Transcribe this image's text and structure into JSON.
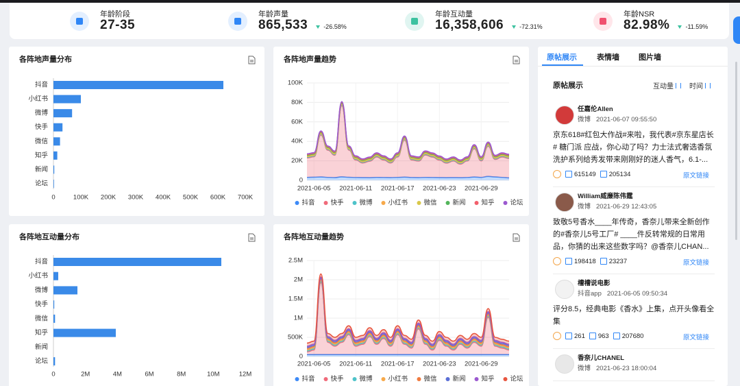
{
  "kpis": [
    {
      "label": "年龄阶段",
      "value": "27-35"
    },
    {
      "label": "年龄声量",
      "value": "865,533",
      "change": "-26.58%"
    },
    {
      "label": "年龄互动量",
      "value": "16,358,606",
      "change": "-72.31%"
    },
    {
      "label": "年龄NSR",
      "value": "82.98%",
      "change": "-11.59%"
    }
  ],
  "chart_data": [
    {
      "type": "bar",
      "orientation": "horizontal",
      "title": "各阵地声量分布",
      "color": "#3a8ae8",
      "categories": [
        "抖音",
        "小红书",
        "微博",
        "快手",
        "微信",
        "知乎",
        "新闻",
        "论坛"
      ],
      "values": [
        620000,
        100000,
        68000,
        33000,
        24000,
        14000,
        3000,
        2000
      ],
      "xlim": [
        0,
        700000
      ],
      "xticks": [
        0,
        {
          "value": 100000,
          "label": "100K"
        },
        {
          "value": 200000,
          "label": "200K"
        },
        {
          "value": 300000,
          "label": "300K"
        },
        {
          "value": 400000,
          "label": "400K"
        },
        {
          "value": 500000,
          "label": "500K"
        },
        {
          "value": 600000,
          "label": "600K"
        },
        {
          "value": 700000,
          "label": "700K"
        }
      ]
    },
    {
      "type": "area",
      "stacked": true,
      "grid": true,
      "title": "各阵地声量趋势",
      "categories": [
        null,
        "2021-06-05",
        null,
        null,
        null,
        null,
        null,
        "2021-06-11",
        null,
        null,
        null,
        null,
        null,
        "2021-06-17",
        null,
        null,
        null,
        null,
        null,
        "2021-06-23",
        null,
        null,
        null,
        null,
        null,
        "2021-06-29",
        null,
        null,
        null,
        null
      ],
      "ylim": [
        0,
        100000
      ],
      "yticks": [
        0,
        {
          "value": 20000,
          "label": "20K"
        },
        {
          "value": 40000,
          "label": "40K"
        },
        {
          "value": 60000,
          "label": "60K"
        },
        {
          "value": 80000,
          "label": "80K"
        },
        {
          "value": 100000,
          "label": "100K"
        }
      ],
      "series": [
        {
          "name": "抖音",
          "color": "#3d8af7",
          "values": [
            3000,
            3200,
            3500,
            3000,
            2800,
            3600,
            3100,
            2900,
            2800,
            2700,
            3000,
            2900,
            2800,
            3000,
            3300,
            2900,
            2800,
            3000,
            2900,
            2800,
            2700,
            2800,
            2700,
            2900,
            3400,
            3000,
            4000,
            3500,
            3000,
            2500
          ]
        },
        {
          "name": "快手",
          "color": "#f06a7a",
          "values": [
            20000,
            21000,
            43000,
            28000,
            23000,
            73000,
            28000,
            18000,
            15000,
            17000,
            21000,
            18000,
            15000,
            21000,
            38000,
            18000,
            17000,
            23000,
            21000,
            18000,
            15000,
            17000,
            14000,
            17000,
            29000,
            17000,
            31000,
            18000,
            21000,
            20000
          ]
        },
        {
          "name": "微博",
          "color": "#4ec3c9",
          "values": [
            700,
            700,
            700,
            700,
            700,
            700,
            700,
            700,
            700,
            700,
            700,
            700,
            700,
            700,
            700,
            700,
            700,
            700,
            700,
            700,
            700,
            700,
            700,
            700,
            700,
            700,
            700,
            700,
            700,
            700
          ]
        },
        {
          "name": "小红书",
          "color": "#f7a94a",
          "values": [
            700,
            700,
            700,
            700,
            700,
            700,
            700,
            700,
            700,
            700,
            700,
            700,
            700,
            700,
            700,
            700,
            700,
            700,
            700,
            700,
            700,
            700,
            700,
            700,
            700,
            700,
            700,
            700,
            700,
            700
          ]
        },
        {
          "name": "微信",
          "color": "#d9c84a",
          "values": [
            700,
            700,
            700,
            700,
            700,
            700,
            700,
            700,
            700,
            700,
            700,
            700,
            700,
            700,
            700,
            700,
            700,
            700,
            700,
            700,
            700,
            700,
            700,
            700,
            700,
            700,
            700,
            700,
            700,
            700
          ]
        },
        {
          "name": "新闻",
          "color": "#52b55a",
          "values": [
            700,
            700,
            700,
            700,
            700,
            700,
            700,
            700,
            700,
            700,
            700,
            700,
            700,
            700,
            700,
            700,
            700,
            700,
            700,
            700,
            700,
            700,
            700,
            700,
            700,
            700,
            700,
            700,
            700,
            700
          ]
        },
        {
          "name": "知乎",
          "color": "#f25f6b",
          "values": [
            700,
            700,
            700,
            700,
            700,
            700,
            700,
            700,
            700,
            700,
            700,
            700,
            700,
            700,
            700,
            700,
            700,
            700,
            700,
            700,
            700,
            700,
            700,
            700,
            700,
            700,
            700,
            700,
            700,
            700
          ]
        },
        {
          "name": "论坛",
          "color": "#9b59d0",
          "values": [
            700,
            700,
            700,
            700,
            700,
            700,
            700,
            700,
            700,
            700,
            700,
            700,
            700,
            700,
            700,
            700,
            700,
            700,
            700,
            700,
            700,
            700,
            700,
            700,
            700,
            700,
            700,
            700,
            700,
            700
          ]
        }
      ]
    },
    {
      "type": "bar",
      "orientation": "horizontal",
      "title": "各阵地互动量分布",
      "color": "#3a8ae8",
      "categories": [
        "抖音",
        "小红书",
        "微博",
        "快手",
        "微信",
        "知乎",
        "新闻",
        "论坛"
      ],
      "values": [
        10500000,
        300000,
        1500000,
        50000,
        100000,
        3900000,
        0,
        100000
      ],
      "xlim": [
        0,
        12000000
      ],
      "xticks": [
        0,
        {
          "value": 2000000,
          "label": "2M"
        },
        {
          "value": 4000000,
          "label": "4M"
        },
        {
          "value": 6000000,
          "label": "6M"
        },
        {
          "value": 8000000,
          "label": "8M"
        },
        {
          "value": 10000000,
          "label": "10M"
        },
        {
          "value": 12000000,
          "label": "12M"
        }
      ]
    },
    {
      "type": "area",
      "stacked": true,
      "grid": true,
      "title": "各阵地互动量趋势",
      "categories": [
        null,
        "2021-06-05",
        null,
        null,
        null,
        null,
        null,
        "2021-06-11",
        null,
        null,
        null,
        null,
        null,
        "2021-06-17",
        null,
        null,
        null,
        null,
        null,
        "2021-06-23",
        null,
        null,
        null,
        null,
        null,
        "2021-06-29",
        null,
        null,
        null,
        null
      ],
      "ylim": [
        0,
        2500000
      ],
      "yticks": [
        0,
        {
          "value": 500000,
          "label": "500K"
        },
        {
          "value": 1000000,
          "label": "1M"
        },
        {
          "value": 1500000,
          "label": "1.5M"
        },
        {
          "value": 2000000,
          "label": "2M"
        },
        {
          "value": 2500000,
          "label": "2.5M"
        }
      ],
      "series": [
        {
          "name": "抖音",
          "color": "#3d8af7",
          "values": [
            50000,
            50000,
            50000,
            50000,
            50000,
            50000,
            50000,
            50000,
            50000,
            50000,
            50000,
            50000,
            50000,
            50000,
            50000,
            50000,
            50000,
            50000,
            50000,
            50000,
            50000,
            50000,
            50000,
            50000,
            50000,
            50000,
            50000,
            50000,
            50000,
            50000
          ]
        },
        {
          "name": "快手",
          "color": "#f06a7a",
          "values": [
            70000,
            120000,
            1870000,
            320000,
            220000,
            320000,
            520000,
            220000,
            270000,
            470000,
            270000,
            420000,
            220000,
            520000,
            270000,
            170000,
            670000,
            270000,
            120000,
            370000,
            220000,
            120000,
            270000,
            170000,
            320000,
            220000,
            970000,
            220000,
            170000,
            120000
          ]
        },
        {
          "name": "微博",
          "color": "#4ec3c9",
          "values": [
            30000,
            30000,
            30000,
            30000,
            30000,
            30000,
            30000,
            30000,
            30000,
            30000,
            30000,
            30000,
            30000,
            30000,
            30000,
            30000,
            30000,
            30000,
            30000,
            30000,
            30000,
            30000,
            30000,
            30000,
            30000,
            30000,
            30000,
            30000,
            30000,
            30000
          ]
        },
        {
          "name": "小红书",
          "color": "#f7a94a",
          "values": [
            30000,
            30000,
            30000,
            30000,
            30000,
            30000,
            30000,
            30000,
            30000,
            30000,
            30000,
            30000,
            30000,
            30000,
            30000,
            30000,
            30000,
            30000,
            30000,
            30000,
            30000,
            30000,
            30000,
            30000,
            30000,
            30000,
            30000,
            30000,
            30000,
            30000
          ]
        },
        {
          "name": "微信",
          "color": "#f07b3f",
          "values": [
            30000,
            30000,
            30000,
            30000,
            30000,
            30000,
            30000,
            30000,
            30000,
            30000,
            30000,
            30000,
            30000,
            30000,
            30000,
            30000,
            30000,
            30000,
            30000,
            30000,
            30000,
            30000,
            30000,
            30000,
            30000,
            30000,
            30000,
            30000,
            30000,
            30000
          ]
        },
        {
          "name": "新闻",
          "color": "#5b6fd6",
          "values": [
            30000,
            30000,
            30000,
            30000,
            30000,
            30000,
            30000,
            30000,
            30000,
            30000,
            30000,
            30000,
            30000,
            30000,
            30000,
            30000,
            30000,
            30000,
            30000,
            30000,
            30000,
            30000,
            30000,
            30000,
            30000,
            30000,
            30000,
            30000,
            30000,
            30000
          ]
        },
        {
          "name": "知乎",
          "color": "#9b59d0",
          "values": [
            30000,
            30000,
            30000,
            30000,
            30000,
            30000,
            30000,
            30000,
            30000,
            30000,
            30000,
            30000,
            30000,
            30000,
            30000,
            30000,
            30000,
            30000,
            30000,
            30000,
            30000,
            30000,
            30000,
            30000,
            30000,
            30000,
            30000,
            30000,
            30000,
            30000
          ]
        },
        {
          "name": "论坛",
          "color": "#e8553f",
          "values": [
            80000,
            80000,
            80000,
            80000,
            80000,
            80000,
            80000,
            80000,
            80000,
            80000,
            80000,
            80000,
            80000,
            80000,
            80000,
            80000,
            80000,
            80000,
            80000,
            80000,
            80000,
            80000,
            80000,
            80000,
            80000,
            80000,
            80000,
            80000,
            80000,
            80000
          ]
        }
      ]
    }
  ],
  "feed": {
    "tabs": [
      "原帖展示",
      "表情墙",
      "图片墙"
    ],
    "title": "原帖展示",
    "sort": [
      "互动量",
      "时间"
    ],
    "posts": [
      {
        "name": "任嘉伦Allen",
        "platform": "微博",
        "time": "2021-06-07 09:55:50",
        "text": "京东618#红包大作战#来啦，我代表#京东星店长# 糖门派 应战，你心动了吗？力士法式奢选香氛洗护系列给秀发带来刚刚好的迷人香气，6.1-...",
        "stats": [
          "615149",
          "205134"
        ],
        "link": "原文链接"
      },
      {
        "name": "William威廉陈伟霆",
        "platform": "微博",
        "time": "2021-06-29 12:43:05",
        "text": "致敬5号香水____年传奇，香奈儿带来全新创作的#香奈儿5号工厂# ____件反转常规的日常用品，你猜的出来这些数字吗？@香奈儿CHAN...",
        "stats": [
          "198418",
          "23237"
        ],
        "link": "原文链接"
      },
      {
        "name": "槽槽说电影",
        "platform": "抖音app",
        "time": "2021-06-05 09:50:34",
        "text": "评分8.5，经典电影《香水》上集，点开头像看全集",
        "stats": [
          "261",
          "963",
          "207680"
        ],
        "link": "原文链接"
      },
      {
        "name": "香奈儿CHANEL",
        "platform": "微博",
        "time": "2021-06-23 18:00:04"
      }
    ]
  }
}
